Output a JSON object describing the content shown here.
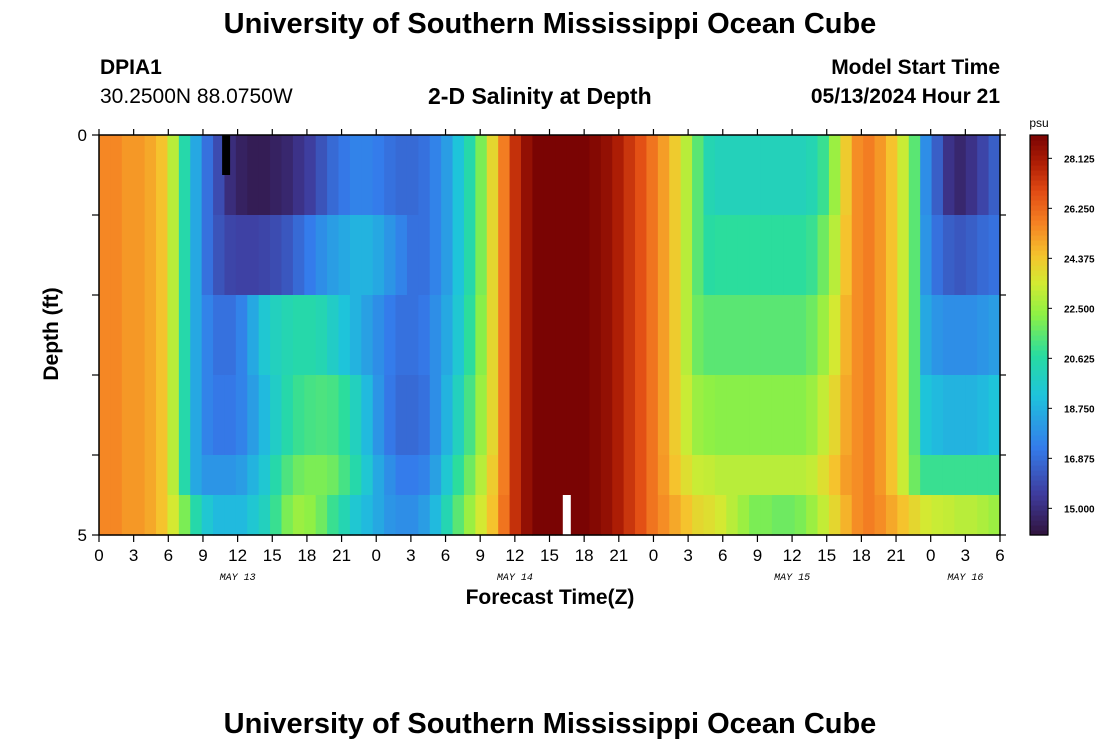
{
  "header": {
    "title": "University of Southern Mississippi Ocean Cube",
    "station_id": "DPIA1",
    "coordinates": "30.2500N  88.0750W",
    "subtitle": "2-D Salinity at Depth",
    "model_start_label": "Model Start Time",
    "model_start_value": "05/13/2024 Hour 21"
  },
  "footer": {
    "title": "University of Southern Mississippi Ocean Cube"
  },
  "chart_data": {
    "type": "heatmap",
    "title": "2-D Salinity at Depth",
    "xlabel": "Forecast Time(Z)",
    "ylabel": "Depth (ft)",
    "x_range_hours": [
      0,
      78
    ],
    "y_range": [
      0,
      5
    ],
    "y_ticks": [
      0,
      1,
      2,
      3,
      4,
      5
    ],
    "y_tick_labels": [
      "0",
      "",
      "",
      "",
      "",
      "5"
    ],
    "x_tick_hours": [
      0,
      3,
      6,
      9,
      12,
      15,
      18,
      21,
      24,
      27,
      30,
      33,
      36,
      39,
      42,
      45,
      48,
      51,
      54,
      57,
      60,
      63,
      66,
      69,
      72,
      75,
      78
    ],
    "x_tick_labels": [
      "0",
      "3",
      "6",
      "9",
      "12",
      "15",
      "18",
      "21",
      "0",
      "3",
      "6",
      "9",
      "12",
      "15",
      "18",
      "21",
      "0",
      "3",
      "6",
      "9",
      "12",
      "15",
      "18",
      "21",
      "0",
      "3",
      "6"
    ],
    "date_labels": [
      {
        "label": "MAY 13",
        "hour": 12
      },
      {
        "label": "MAY 14",
        "hour": 36
      },
      {
        "label": "MAY 15",
        "hour": 60
      },
      {
        "label": "MAY 16",
        "hour": 75
      }
    ],
    "depth_layers": [
      0,
      1,
      2,
      3,
      4,
      5
    ],
    "colorbar": {
      "unit": "psu",
      "min": 14.0,
      "max": 29.0,
      "ticks": [
        15.0,
        16.875,
        18.75,
        20.625,
        22.5,
        24.375,
        26.25,
        28.125
      ],
      "tick_labels": [
        "15.000",
        "16.875",
        "18.750",
        "20.625",
        "22.500",
        "24.375",
        "26.250",
        "28.125"
      ]
    },
    "markers": [
      {
        "label": "nowcast-start",
        "hour": 11,
        "depth_from": 0,
        "depth_to": 0.5,
        "color": "#000000"
      },
      {
        "label": "current-time",
        "hour": 40.5,
        "depth_from": 4.5,
        "depth_to": 5,
        "color": "#ffffff"
      }
    ],
    "series": [
      {
        "name": "layer 0-1 ft",
        "values": [
          25.6,
          25.6,
          25.3,
          25.3,
          25.0,
          24.5,
          23.0,
          20.5,
          18.5,
          17.0,
          16.0,
          15.0,
          14.6,
          14.4,
          14.4,
          14.6,
          14.8,
          15.2,
          15.6,
          16.2,
          16.8,
          17.2,
          17.5,
          17.5,
          17.3,
          17.0,
          16.8,
          16.8,
          17.0,
          17.5,
          18.2,
          19.3,
          20.5,
          22.0,
          24.0,
          25.8,
          27.5,
          28.5,
          29.0,
          29.0,
          29.0,
          29.0,
          29.0,
          28.8,
          28.5,
          28.0,
          27.4,
          26.8,
          26.0,
          25.2,
          24.3,
          23.0,
          21.5,
          20.3,
          20.1,
          20.1,
          20.1,
          20.1,
          20.1,
          20.1,
          20.1,
          20.1,
          20.3,
          21.0,
          22.5,
          24.3,
          25.5,
          25.8,
          25.3,
          24.5,
          23.3,
          21.5,
          17.8,
          16.5,
          15.2,
          14.8,
          15.2,
          15.8,
          16.5
        ]
      },
      {
        "name": "layer 1-2 ft",
        "values": [
          25.6,
          25.6,
          25.3,
          25.3,
          25.0,
          24.5,
          23.0,
          20.5,
          18.5,
          17.0,
          16.2,
          15.8,
          15.7,
          15.7,
          15.8,
          16.0,
          16.3,
          16.8,
          17.3,
          17.8,
          18.2,
          18.5,
          18.8,
          18.8,
          18.5,
          18.0,
          17.5,
          17.0,
          17.0,
          17.5,
          18.2,
          19.3,
          20.5,
          22.0,
          24.0,
          25.8,
          27.5,
          28.5,
          29.0,
          29.0,
          29.0,
          29.0,
          29.0,
          28.8,
          28.5,
          28.0,
          27.4,
          26.8,
          26.0,
          25.2,
          24.3,
          23.0,
          21.5,
          20.7,
          20.8,
          20.8,
          20.8,
          20.8,
          20.8,
          20.8,
          20.8,
          20.8,
          21.0,
          21.8,
          23.0,
          24.5,
          25.5,
          25.8,
          25.3,
          24.5,
          23.3,
          21.5,
          18.0,
          17.0,
          16.5,
          16.3,
          16.5,
          16.8,
          17.0
        ]
      },
      {
        "name": "layer 2-3 ft",
        "values": [
          25.6,
          25.6,
          25.3,
          25.3,
          25.0,
          24.5,
          23.0,
          20.5,
          18.5,
          17.5,
          17.0,
          17.0,
          17.5,
          18.5,
          19.5,
          20.0,
          20.3,
          20.5,
          20.5,
          20.3,
          19.8,
          19.3,
          18.8,
          18.3,
          17.8,
          17.3,
          17.0,
          17.0,
          17.2,
          17.8,
          18.5,
          19.5,
          20.8,
          22.2,
          24.0,
          25.8,
          27.5,
          28.5,
          29.0,
          29.0,
          29.0,
          29.0,
          29.0,
          28.8,
          28.5,
          28.0,
          27.4,
          26.8,
          26.0,
          25.2,
          24.3,
          23.0,
          21.8,
          21.5,
          21.5,
          21.5,
          21.5,
          21.5,
          21.5,
          21.5,
          21.5,
          21.5,
          21.8,
          22.5,
          23.5,
          24.8,
          25.5,
          25.8,
          25.3,
          24.5,
          23.3,
          21.5,
          18.5,
          18.0,
          17.8,
          17.8,
          17.8,
          18.0,
          18.2
        ]
      },
      {
        "name": "layer 3-4 ft",
        "values": [
          25.6,
          25.6,
          25.3,
          25.3,
          25.0,
          24.5,
          23.0,
          20.5,
          18.5,
          17.5,
          17.2,
          17.2,
          17.5,
          18.2,
          19.0,
          19.8,
          20.5,
          21.0,
          21.2,
          21.3,
          21.2,
          20.8,
          20.0,
          19.0,
          18.0,
          17.2,
          16.8,
          16.8,
          17.0,
          17.8,
          18.8,
          20.0,
          21.2,
          22.5,
          24.0,
          25.8,
          27.5,
          28.5,
          29.0,
          29.0,
          29.0,
          29.0,
          29.0,
          28.8,
          28.5,
          28.0,
          27.4,
          26.8,
          26.0,
          25.2,
          24.3,
          23.3,
          22.5,
          22.3,
          22.2,
          22.2,
          22.2,
          22.2,
          22.2,
          22.2,
          22.2,
          22.2,
          22.5,
          23.2,
          24.0,
          25.0,
          25.5,
          25.8,
          25.3,
          24.5,
          23.3,
          21.5,
          19.3,
          19.0,
          18.8,
          18.8,
          18.8,
          19.0,
          19.3
        ]
      },
      {
        "name": "layer 4-5 ft",
        "values": [
          25.6,
          25.6,
          25.3,
          25.3,
          25.0,
          24.5,
          23.0,
          20.5,
          18.5,
          18.0,
          18.0,
          18.0,
          18.2,
          18.8,
          19.5,
          20.5,
          21.3,
          21.8,
          22.0,
          22.0,
          21.8,
          21.2,
          20.5,
          19.5,
          18.5,
          17.8,
          17.3,
          17.3,
          17.5,
          18.3,
          19.5,
          20.8,
          21.8,
          23.0,
          24.3,
          25.8,
          27.5,
          28.5,
          29.0,
          29.0,
          29.0,
          29.0,
          29.0,
          28.8,
          28.5,
          28.0,
          27.4,
          26.8,
          26.0,
          25.3,
          24.5,
          23.8,
          23.3,
          23.2,
          23.0,
          23.0,
          23.0,
          23.0,
          23.0,
          23.0,
          23.0,
          23.0,
          23.2,
          23.8,
          24.5,
          25.2,
          25.5,
          25.8,
          25.3,
          24.5,
          23.3,
          21.8,
          21.0,
          21.0,
          21.0,
          21.0,
          21.0,
          21.0,
          21.0
        ]
      },
      {
        "name": "layer 4.5-5 ft",
        "values": [
          25.6,
          25.6,
          25.3,
          25.3,
          25.0,
          24.5,
          23.5,
          22.0,
          20.5,
          19.5,
          19.0,
          19.0,
          19.0,
          19.5,
          20.0,
          21.0,
          22.0,
          22.5,
          22.3,
          21.8,
          21.0,
          20.3,
          19.5,
          19.0,
          18.5,
          18.0,
          17.8,
          17.8,
          18.2,
          19.0,
          20.3,
          21.5,
          22.5,
          23.5,
          24.5,
          26.0,
          27.5,
          28.5,
          29.0,
          29.0,
          29.0,
          29.0,
          29.0,
          28.8,
          28.5,
          28.0,
          27.4,
          26.8,
          26.0,
          25.5,
          25.0,
          24.5,
          24.0,
          23.8,
          23.5,
          23.0,
          22.5,
          22.0,
          22.0,
          21.8,
          21.8,
          22.0,
          22.5,
          23.2,
          24.0,
          24.8,
          25.5,
          25.8,
          25.5,
          25.0,
          24.5,
          24.0,
          23.5,
          23.3,
          23.2,
          23.0,
          23.0,
          22.8,
          22.5
        ]
      }
    ]
  }
}
